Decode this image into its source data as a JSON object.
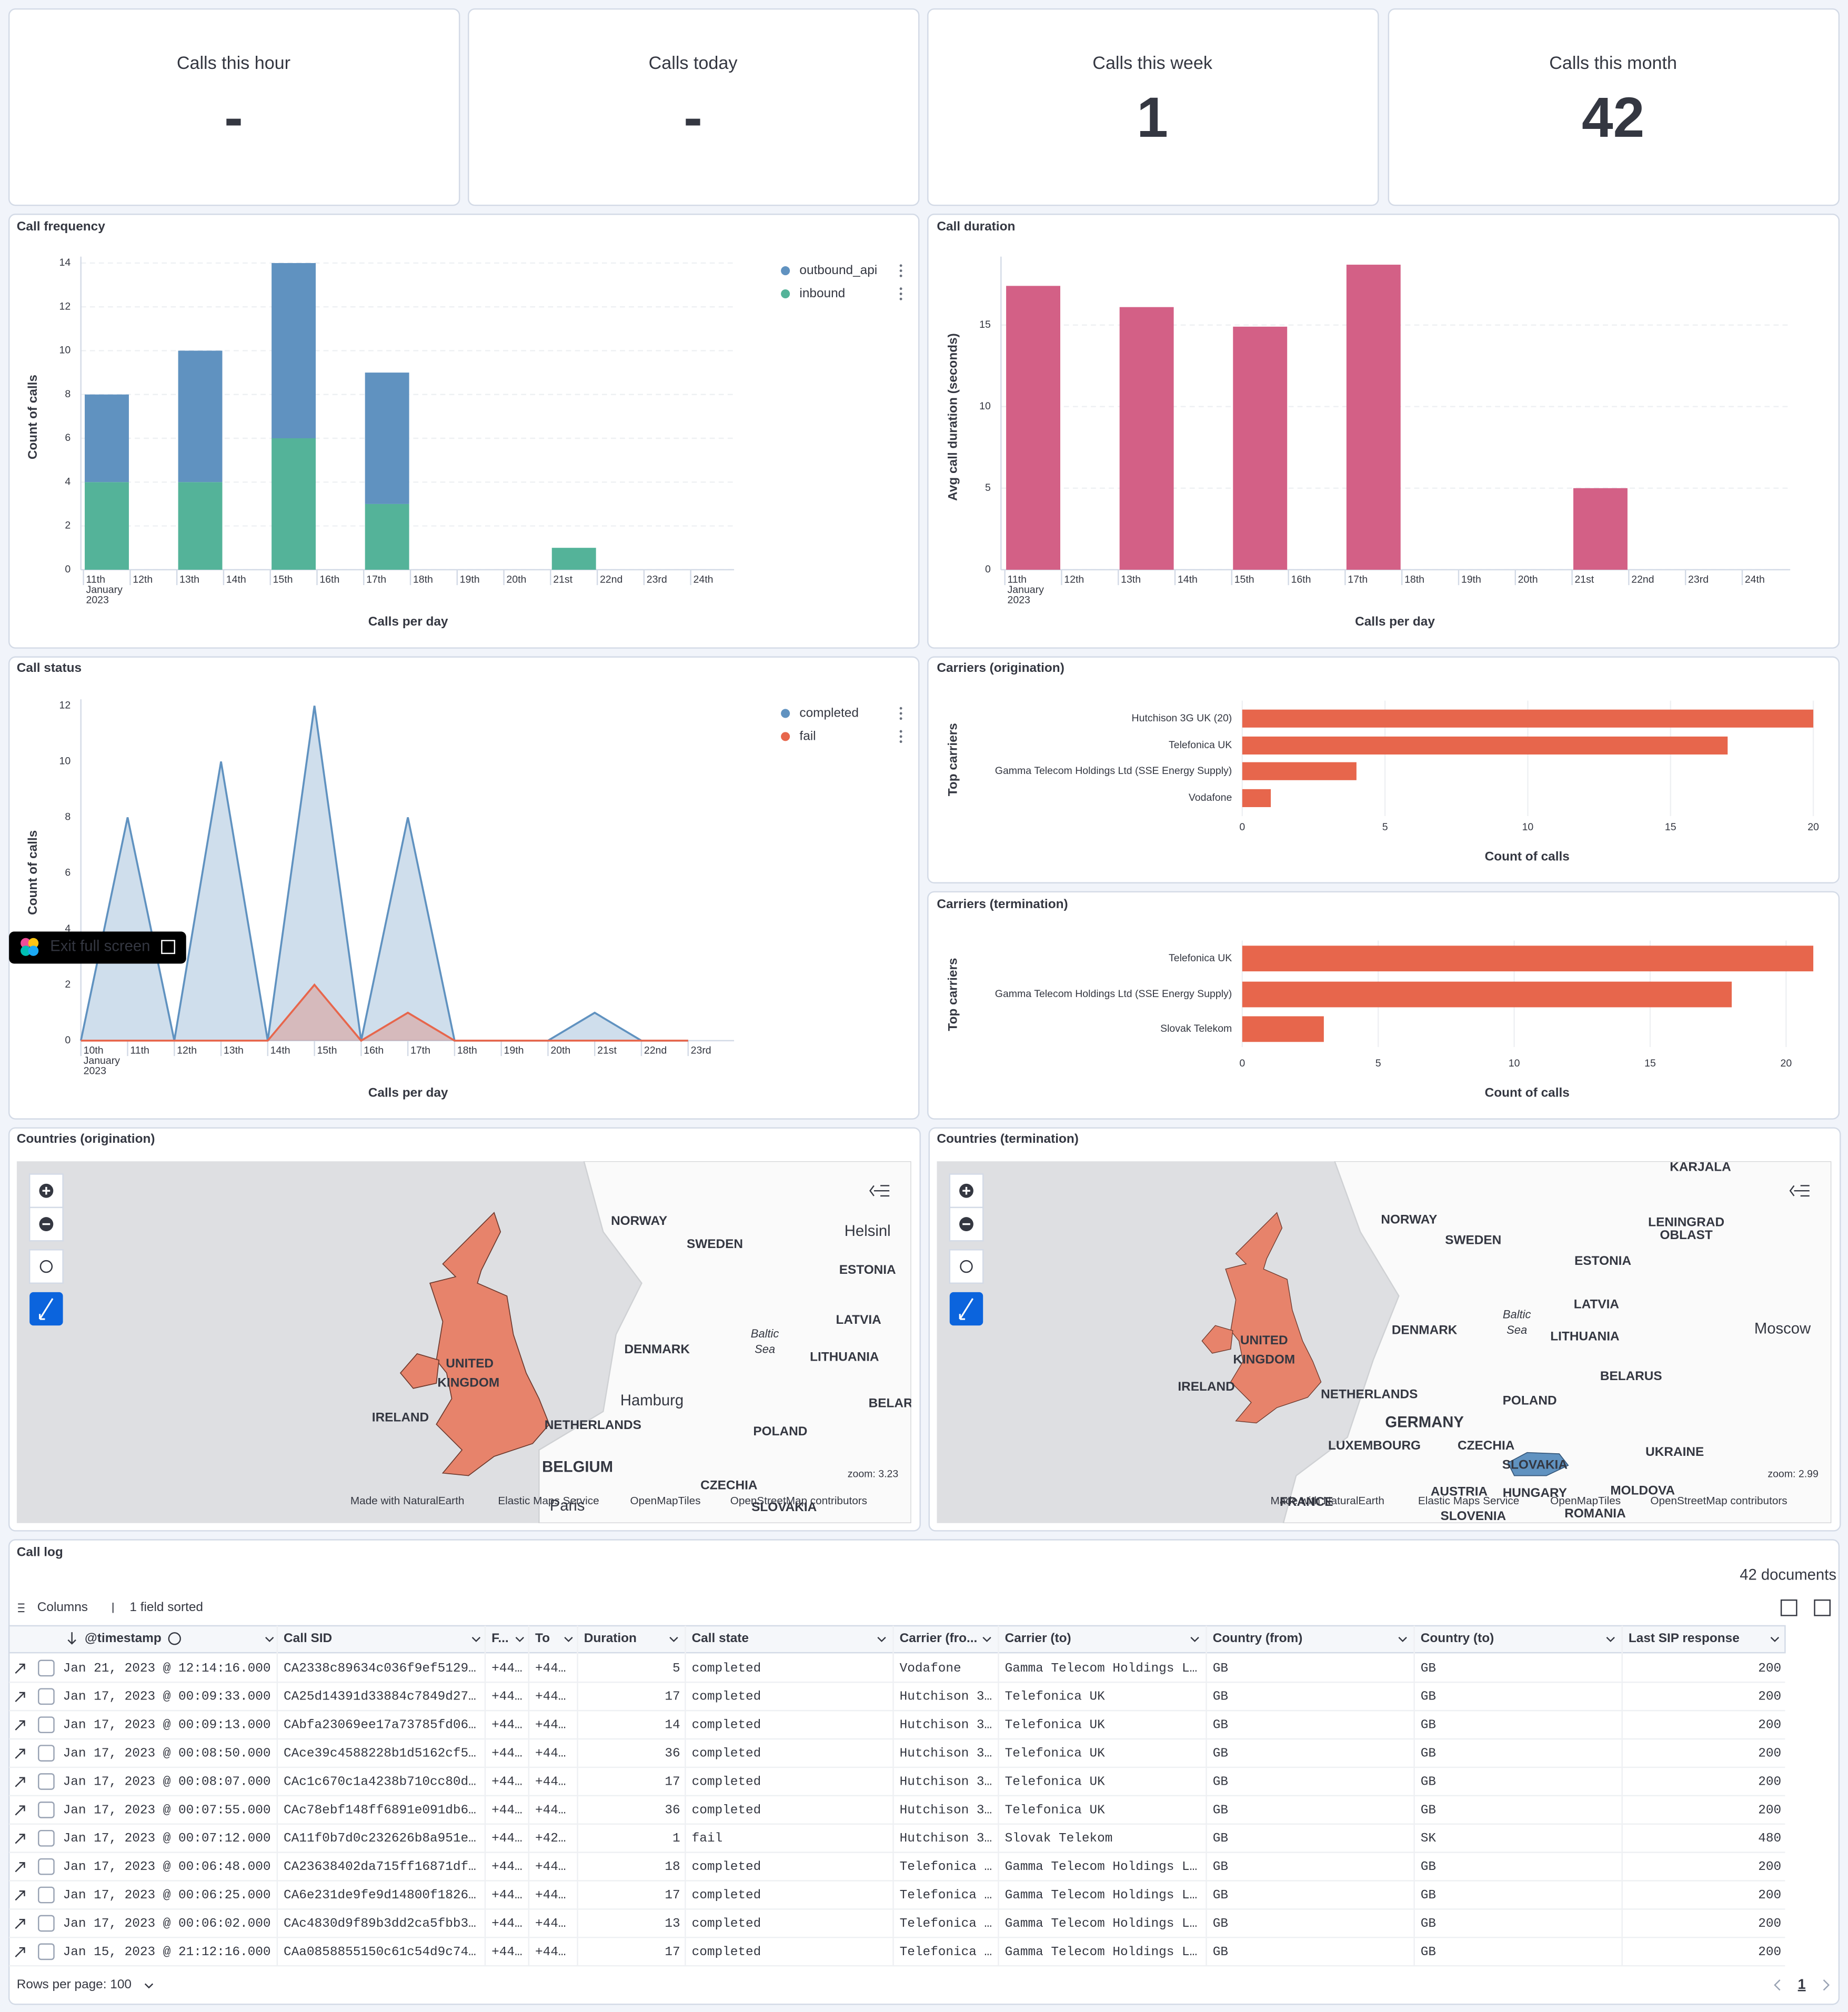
{
  "metrics": [
    {
      "label": "Calls this hour",
      "value": "-"
    },
    {
      "label": "Calls today",
      "value": "-"
    },
    {
      "label": "Calls this week",
      "value": 1
    },
    {
      "label": "Calls this month",
      "value": 42
    }
  ],
  "chart_data": [
    {
      "type": "stacked_bar",
      "title": "Call frequency",
      "x_label": "Calls per day",
      "y_label": "Count of calls",
      "x_sublabel": [
        "January",
        "2023"
      ],
      "categories": [
        "11th",
        "12th",
        "13th",
        "14th",
        "15th",
        "16th",
        "17th",
        "18th",
        "19th",
        "20th",
        "21st",
        "22nd",
        "23rd",
        "24th"
      ],
      "series": [
        {
          "name": "outbound_api",
          "color": "#6092c0",
          "values": [
            4,
            null,
            6,
            null,
            8,
            null,
            6,
            null,
            null,
            null,
            null,
            null,
            null,
            null
          ]
        },
        {
          "name": "inbound",
          "color": "#54b399",
          "values": [
            4,
            null,
            4,
            null,
            6,
            null,
            3,
            null,
            null,
            null,
            1,
            null,
            null,
            null
          ]
        }
      ],
      "ylim": [
        0,
        14
      ],
      "yticks": [
        0,
        2,
        4,
        6,
        8,
        10,
        12,
        14
      ],
      "grid": true,
      "legend": "top-right"
    },
    {
      "type": "bar",
      "title": "Call duration",
      "x_label": "Calls per day",
      "y_label": "Avg call duration (seconds)",
      "x_sublabel": [
        "January",
        "2023"
      ],
      "categories": [
        "11th",
        "12th",
        "13th",
        "14th",
        "15th",
        "16th",
        "17th",
        "18th",
        "19th",
        "20th",
        "21st",
        "22nd",
        "23rd",
        "24th"
      ],
      "values": [
        17.4,
        null,
        16.1,
        null,
        14.9,
        null,
        18.7,
        null,
        null,
        null,
        5,
        null,
        null,
        null
      ],
      "color": "#d36086",
      "ylim": [
        0,
        18.8
      ],
      "yticks": [
        0,
        5,
        10,
        15
      ],
      "grid": true
    },
    {
      "type": "area",
      "title": "Call status",
      "x_label": "Calls per day",
      "y_label": "Count of calls",
      "x_sublabel": [
        "January",
        "2023"
      ],
      "categories": [
        "10th",
        "11th",
        "12th",
        "13th",
        "14th",
        "15th",
        "16th",
        "17th",
        "18th",
        "19th",
        "20th",
        "21st",
        "22nd",
        "23rd"
      ],
      "series": [
        {
          "name": "completed",
          "color": "#6092c0",
          "values": [
            0,
            8,
            0,
            10,
            0,
            12,
            0,
            8,
            0,
            0,
            0,
            1,
            0,
            0
          ]
        },
        {
          "name": "fail",
          "color": "#e7664c",
          "values": [
            0,
            0,
            0,
            0,
            0,
            2,
            0,
            1,
            0,
            0,
            0,
            0,
            0,
            0
          ]
        }
      ],
      "ylim": [
        0,
        12
      ],
      "yticks": [
        0,
        2,
        4,
        6,
        8,
        10,
        12
      ],
      "legend": "top-right"
    },
    {
      "type": "hbar",
      "title": "Carriers (origination)",
      "x_label": "Count of calls",
      "y_label": "Top carriers",
      "categories": [
        "Hutchison 3G UK (20)",
        "Telefonica UK",
        "Gamma Telecom Holdings Ltd (SSE Energy Supply)",
        "Vodafone"
      ],
      "values": [
        20,
        17,
        4,
        1
      ],
      "color": "#e7664c",
      "xlim": [
        0,
        20
      ],
      "xticks": [
        0,
        5,
        10,
        15,
        20
      ]
    },
    {
      "type": "hbar",
      "title": "Carriers (termination)",
      "x_label": "Count of calls",
      "y_label": "Top carriers",
      "categories": [
        "Telefonica UK",
        "Gamma Telecom Holdings Ltd (SSE Energy Supply)",
        "Slovak Telekom"
      ],
      "values": [
        21,
        18,
        3
      ],
      "color": "#e7664c",
      "xlim": [
        0,
        21
      ],
      "xticks": [
        0,
        5,
        10,
        15,
        20
      ]
    }
  ],
  "maps": [
    {
      "title": "Countries (origination)",
      "zoom": "zoom: 3.23",
      "labels": [
        "NORWAY",
        "SWEDEN",
        "Helsinl",
        "ESTONIA",
        "LATVIA",
        "DENMARK",
        "LITHUANIA",
        "UNITED",
        "KINGDOM",
        "IRELAND",
        "Hamburg",
        "BELAR",
        "NETHERLANDS",
        "POLAND",
        "BELGIUM",
        "CZECHIA",
        "Paris",
        "SLOVAKIA",
        "Baltic",
        "Sea"
      ],
      "attribution": [
        "Made with NaturalEarth",
        "Elastic Maps Service",
        "OpenMapTiles",
        "OpenStreetMap contributors"
      ]
    },
    {
      "title": "Countries (termination)",
      "zoom": "zoom: 2.99",
      "labels": [
        "KARJALA",
        "NORWAY",
        "SWEDEN",
        "LENINGRAD",
        "OBLAST",
        "ESTONIA",
        "LATVIA",
        "Moscow",
        "DENMARK",
        "Baltic",
        "Sea",
        "LITHUANIA",
        "UNITED",
        "KINGDOM",
        "IRELAND",
        "NETHERLANDS",
        "BELARUS",
        "POLAND",
        "GERMANY",
        "LUXEMBOURG",
        "CZECHIA",
        "UKRAINE",
        "SLOVAKIA",
        "AUSTRIA",
        "HUNGARY",
        "MOLDOVA",
        "FRANCE",
        "SLOVENIA",
        "ROMANIA"
      ],
      "attribution": [
        "Made with NaturalEarth",
        "Elastic Maps Service",
        "OpenMapTiles",
        "OpenStreetMap contributors"
      ]
    }
  ],
  "tooltip": "Exit full screen",
  "table": {
    "title": "Call log",
    "count": "42 documents",
    "toolbar": [
      "Columns",
      "1 field sorted"
    ],
    "columns": [
      "@timestamp",
      "Call SID",
      "F...",
      "To",
      "Duration",
      "Call state",
      "Carrier (fro...",
      "Carrier (to)",
      "Country (from)",
      "Country (to)",
      "Last SIP response"
    ],
    "rows": [
      [
        "Jan 21, 2023 @ 12:14:16.000",
        "CA2338c89634c036f9ef5129…",
        "+44…",
        "+44…",
        "5",
        "completed",
        "Vodafone",
        "Gamma Telecom Holdings L…",
        "GB",
        "GB",
        "200"
      ],
      [
        "Jan 17, 2023 @ 00:09:33.000",
        "CA25d14391d33884c7849d27…",
        "+44…",
        "+44…",
        "17",
        "completed",
        "Hutchison 3…",
        "Telefonica UK",
        "GB",
        "GB",
        "200"
      ],
      [
        "Jan 17, 2023 @ 00:09:13.000",
        "CAbfa23069ee17a73785fd06…",
        "+44…",
        "+44…",
        "14",
        "completed",
        "Hutchison 3…",
        "Telefonica UK",
        "GB",
        "GB",
        "200"
      ],
      [
        "Jan 17, 2023 @ 00:08:50.000",
        "CAce39c4588228b1d5162cf5…",
        "+44…",
        "+44…",
        "36",
        "completed",
        "Hutchison 3…",
        "Telefonica UK",
        "GB",
        "GB",
        "200"
      ],
      [
        "Jan 17, 2023 @ 00:08:07.000",
        "CAc1c670c1a4238b710cc80d…",
        "+44…",
        "+44…",
        "17",
        "completed",
        "Hutchison 3…",
        "Telefonica UK",
        "GB",
        "GB",
        "200"
      ],
      [
        "Jan 17, 2023 @ 00:07:55.000",
        "CAc78ebf148ff6891e091db6…",
        "+44…",
        "+44…",
        "36",
        "completed",
        "Hutchison 3…",
        "Telefonica UK",
        "GB",
        "GB",
        "200"
      ],
      [
        "Jan 17, 2023 @ 00:07:12.000",
        "CA11f0b7d0c232626b8a951e…",
        "+44…",
        "+42…",
        "1",
        "fail",
        "Hutchison 3…",
        "Slovak Telekom",
        "GB",
        "SK",
        "480"
      ],
      [
        "Jan 17, 2023 @ 00:06:48.000",
        "CA23638402da715ff16871df…",
        "+44…",
        "+44…",
        "18",
        "completed",
        "Telefonica …",
        "Gamma Telecom Holdings L…",
        "GB",
        "GB",
        "200"
      ],
      [
        "Jan 17, 2023 @ 00:06:25.000",
        "CA6e231de9fe9d14800f1826…",
        "+44…",
        "+44…",
        "17",
        "completed",
        "Telefonica …",
        "Gamma Telecom Holdings L…",
        "GB",
        "GB",
        "200"
      ],
      [
        "Jan 17, 2023 @ 00:06:02.000",
        "CAc4830d9f89b3dd2ca5fbb3…",
        "+44…",
        "+44…",
        "13",
        "completed",
        "Telefonica …",
        "Gamma Telecom Holdings L…",
        "GB",
        "GB",
        "200"
      ],
      [
        "Jan 15, 2023 @ 21:12:16.000",
        "CAa0858855150c61c54d9c74…",
        "+44…",
        "+44…",
        "17",
        "completed",
        "Telefonica …",
        "Gamma Telecom Holdings L…",
        "GB",
        "GB",
        "200"
      ]
    ],
    "footer": "Rows per page: 100",
    "page": "1"
  }
}
